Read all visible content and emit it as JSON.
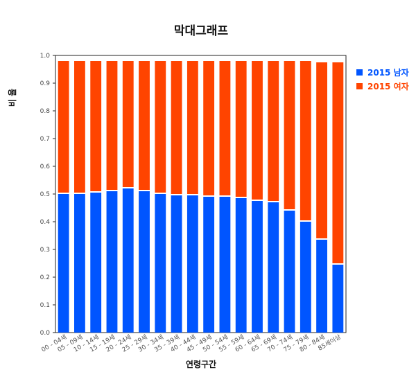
{
  "chart_data": {
    "type": "bar",
    "stacked": true,
    "title": "막대그래프",
    "xlabel": "연령구간",
    "ylabel": "비 율",
    "ylim": [
      0,
      1.0
    ],
    "yticks": [
      "0.0",
      "0.1",
      "0.2",
      "0.3",
      "0.4",
      "0.5",
      "0.6",
      "0.7",
      "0.8",
      "0.9",
      "1.0"
    ],
    "categories": [
      "00 - 04세",
      "05 - 09세",
      "10 - 14세",
      "15 - 19세",
      "20 - 24세",
      "25 - 29세",
      "30 - 34세",
      "35 - 39세",
      "40 - 44세",
      "45 - 49세",
      "50 - 54세",
      "55 - 59세",
      "60 - 64세",
      "65 - 69세",
      "70 - 74세",
      "75 - 79세",
      "80 - 84세",
      "85세이상"
    ],
    "series": [
      {
        "name": "2015 남자",
        "color": "#0055ff",
        "values": [
          0.5,
          0.5,
          0.505,
          0.51,
          0.52,
          0.51,
          0.5,
          0.495,
          0.495,
          0.49,
          0.49,
          0.485,
          0.475,
          0.47,
          0.44,
          0.4,
          0.335,
          0.245
        ]
      },
      {
        "name": "2015 여자",
        "color": "#ff4400",
        "values": [
          0.48,
          0.48,
          0.475,
          0.47,
          0.46,
          0.47,
          0.48,
          0.485,
          0.485,
          0.49,
          0.49,
          0.495,
          0.505,
          0.51,
          0.54,
          0.58,
          0.64,
          0.73
        ]
      }
    ],
    "legend_position": "top-right",
    "grid": false
  }
}
